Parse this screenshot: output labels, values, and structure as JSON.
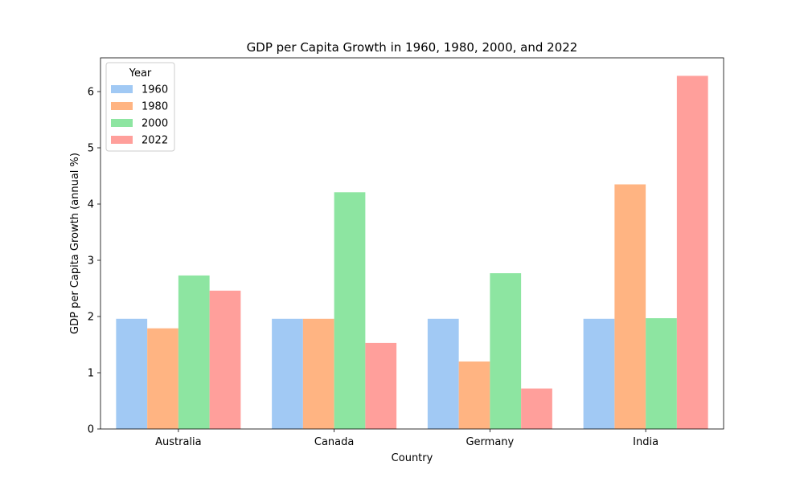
{
  "chart_data": {
    "type": "bar",
    "title": "GDP per Capita Growth in 1960, 1980, 2000, and 2022",
    "xlabel": "Country",
    "ylabel": "GDP per Capita Growth (annual %)",
    "categories": [
      "Australia",
      "Canada",
      "Germany",
      "India"
    ],
    "series": [
      {
        "name": "1960",
        "color": "#a1c9f4",
        "values": [
          1.96,
          1.96,
          1.96,
          1.96
        ]
      },
      {
        "name": "1980",
        "color": "#ffb482",
        "values": [
          1.79,
          1.96,
          1.2,
          4.35
        ]
      },
      {
        "name": "2000",
        "color": "#8de5a1",
        "values": [
          2.73,
          4.21,
          2.77,
          1.97
        ]
      },
      {
        "name": "2022",
        "color": "#ff9f9b",
        "values": [
          2.46,
          1.53,
          0.72,
          6.28
        ]
      }
    ],
    "ylim": [
      0,
      6.6
    ],
    "yticks": [
      0,
      1,
      2,
      3,
      4,
      5,
      6
    ],
    "grid": false,
    "legend": {
      "title": "Year",
      "placement": "top-left"
    }
  }
}
